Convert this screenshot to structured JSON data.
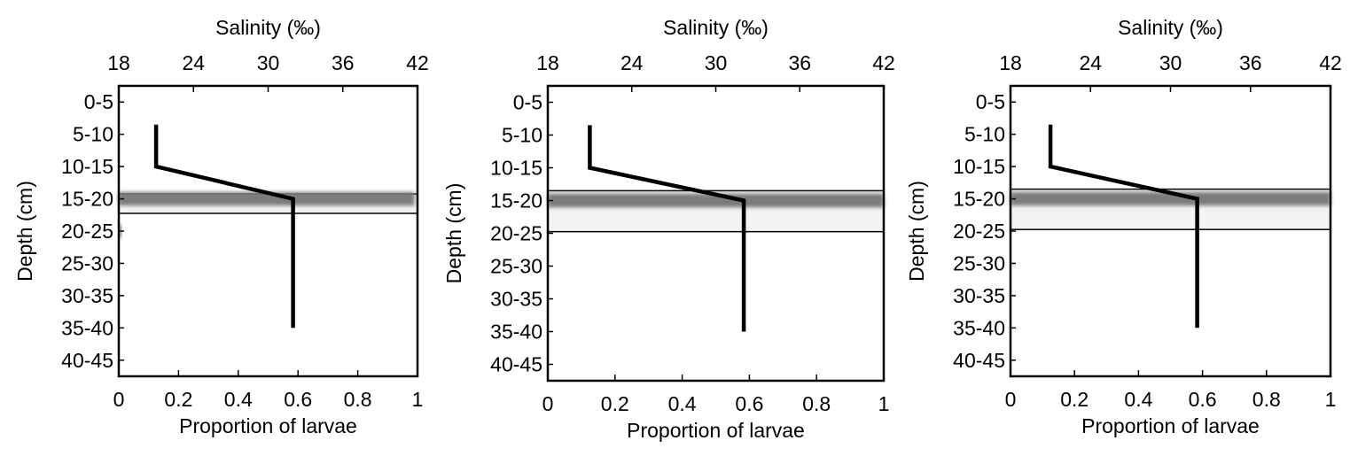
{
  "chart_data": [
    {
      "type": "bar",
      "orientation": "horizontal",
      "categories": [
        "0-5",
        "5-10",
        "10-15",
        "15-20",
        "20-25",
        "25-30",
        "30-35",
        "35-40",
        "40-45"
      ],
      "values": [
        0,
        0,
        0,
        0.99,
        0.01,
        0,
        0,
        0,
        0
      ],
      "xlabel": "Proportion of larvae",
      "ylabel": "Depth (cm)",
      "xlim": [
        0,
        1
      ],
      "xticks": [
        "0",
        "0.2",
        "0.4",
        "0.6",
        "0.8",
        "1"
      ],
      "secondary_x": {
        "label": "Salinity (‰)",
        "lim": [
          18,
          42
        ],
        "ticks": [
          "18",
          "24",
          "30",
          "36",
          "42"
        ]
      },
      "salinity_profile": {
        "depth": [
          "5-10",
          "10-15",
          "15-20",
          "35-40"
        ],
        "values": [
          21,
          21,
          32,
          32
        ]
      },
      "highlight_band": [
        "15-20"
      ]
    },
    {
      "type": "bar",
      "orientation": "horizontal",
      "categories": [
        "0-5",
        "5-10",
        "10-15",
        "15-20",
        "20-25",
        "25-30",
        "30-35",
        "35-40",
        "40-45"
      ],
      "values": [
        0,
        0,
        0,
        1.0,
        0,
        0,
        0,
        0,
        0
      ],
      "xlabel": "Proportion of larvae",
      "ylabel": "Depth (cm)",
      "xlim": [
        0,
        1
      ],
      "xticks": [
        "0",
        "0.2",
        "0.4",
        "0.6",
        "0.8",
        "1"
      ],
      "secondary_x": {
        "label": "Salinity (‰)",
        "lim": [
          18,
          42
        ],
        "ticks": [
          "18",
          "24",
          "30",
          "36",
          "42"
        ]
      },
      "salinity_profile": {
        "depth": [
          "5-10",
          "10-15",
          "15-20",
          "35-40"
        ],
        "values": [
          21,
          21,
          32,
          32
        ]
      },
      "highlight_band": [
        "15-20",
        "20-25"
      ]
    },
    {
      "type": "bar",
      "orientation": "horizontal",
      "categories": [
        "0-5",
        "5-10",
        "10-15",
        "15-20",
        "20-25",
        "25-30",
        "30-35",
        "35-40",
        "40-45"
      ],
      "values": [
        0,
        0,
        0,
        1.0,
        0,
        0,
        0,
        0,
        0
      ],
      "xlabel": "Proportion of larvae",
      "ylabel": "Depth (cm)",
      "xlim": [
        0,
        1
      ],
      "xticks": [
        "0",
        "0.2",
        "0.4",
        "0.6",
        "0.8",
        "1"
      ],
      "secondary_x": {
        "label": "Salinity (‰)",
        "lim": [
          18,
          42
        ],
        "ticks": [
          "18",
          "24",
          "30",
          "36",
          "42"
        ]
      },
      "salinity_profile": {
        "depth": [
          "5-10",
          "10-15",
          "15-20",
          "35-40"
        ],
        "values": [
          21,
          21,
          32,
          32
        ]
      },
      "highlight_band": [
        "15-20",
        "20-25"
      ]
    }
  ]
}
